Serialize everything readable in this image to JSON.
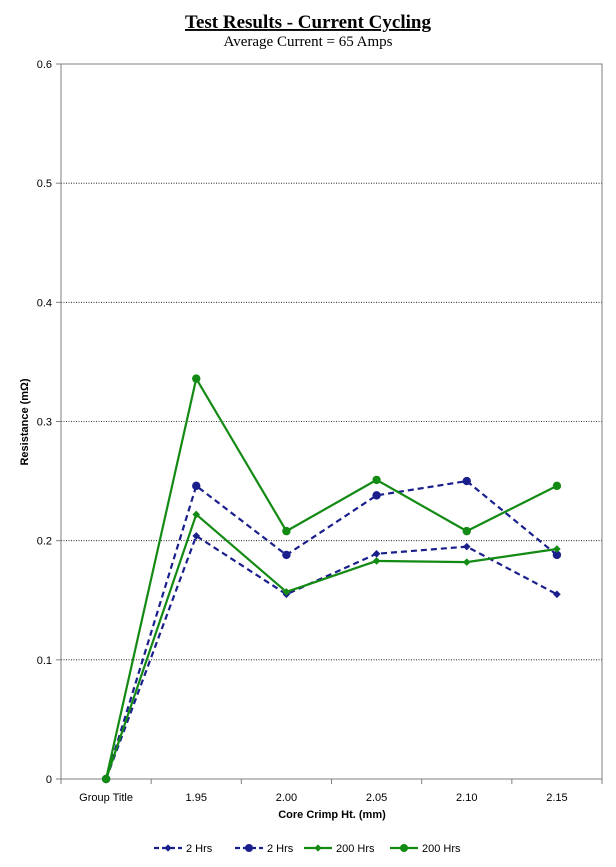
{
  "chart_data": {
    "type": "line",
    "title": "Test Results - Current Cycling",
    "subtitle": "Average Current =  65 Amps",
    "xlabel": "Core Crimp Ht. (mm)",
    "ylabel": "Resistance (mΩ)",
    "categories": [
      "Group Title",
      "1.95",
      "2.00",
      "2.05",
      "2.10",
      "2.15"
    ],
    "ylim": [
      0,
      0.6
    ],
    "yticks": [
      "0",
      "0.1",
      "0.2",
      "0.3",
      "0.4",
      "0.5",
      "0.6"
    ],
    "grid": "horizontal dotted",
    "legend_position": "bottom",
    "series": [
      {
        "name": "2 Hrs",
        "color": "#1a1f8c",
        "dash": "dashed",
        "marker": "diamond",
        "values": [
          0,
          0.204,
          0.155,
          0.189,
          0.195,
          0.155
        ]
      },
      {
        "name": "2 Hrs",
        "color": "#1a1f8c",
        "dash": "dashed",
        "marker": "circle",
        "values": [
          0,
          0.246,
          0.188,
          0.238,
          0.25,
          0.188
        ]
      },
      {
        "name": "200 Hrs",
        "color": "#138a13",
        "dash": "solid",
        "marker": "diamond",
        "values": [
          0,
          0.222,
          0.157,
          0.183,
          0.182,
          0.193
        ]
      },
      {
        "name": "200 Hrs",
        "color": "#138a13",
        "dash": "solid",
        "marker": "circle",
        "values": [
          0,
          0.336,
          0.208,
          0.251,
          0.208,
          0.246
        ]
      }
    ]
  }
}
